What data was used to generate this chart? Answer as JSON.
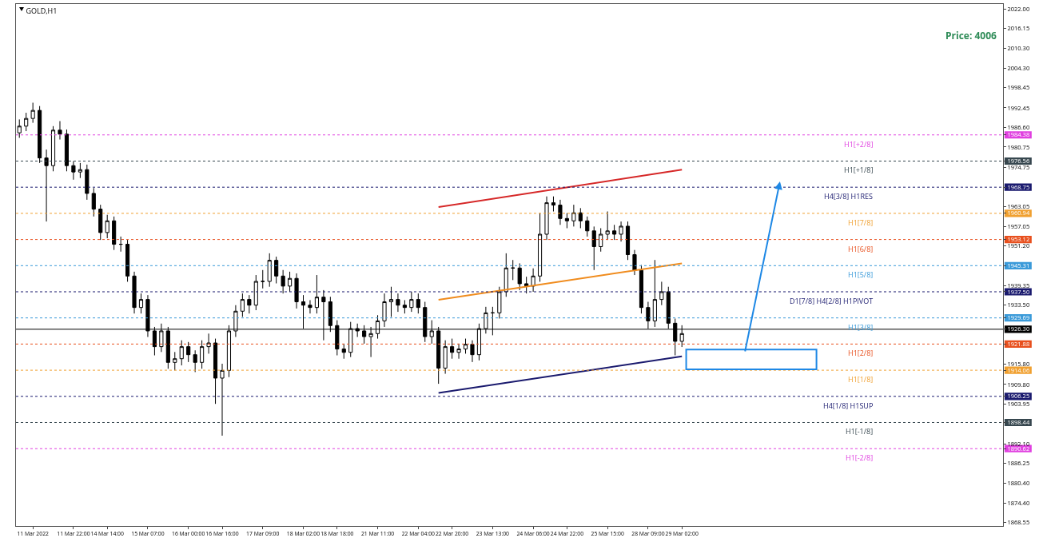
{
  "chart_data": {
    "type": "candlestick",
    "title": "GOLD,H1",
    "color": "#000000",
    "categories": [
      null,
      null,
      "11 Mar 2022",
      null,
      null,
      null,
      null,
      null,
      "11 Mar 22:00",
      null,
      null,
      null,
      null,
      "14 Mar 14:00",
      null,
      null,
      null,
      null,
      null,
      "15 Mar 07:00",
      null,
      null,
      null,
      null,
      null,
      "16 Mar 00:00",
      null,
      null,
      null,
      null,
      "16 Mar 16:00",
      null,
      null,
      null,
      null,
      null,
      "17 Mar 09:00",
      null,
      null,
      null,
      null,
      null,
      "18 Mar 02:00",
      null,
      null,
      null,
      null,
      "18 Mar 18:00",
      null,
      null,
      null,
      null,
      null,
      "21 Mar 11:00",
      null,
      null,
      null,
      null,
      null,
      "22 Mar 04:00",
      null,
      null,
      null,
      null,
      "22 Mar 20:00",
      null,
      null,
      null,
      null,
      null,
      "23 Mar 13:00",
      null,
      null,
      null,
      null,
      null,
      "24 Mar 06:00",
      null,
      null,
      null,
      null,
      "24 Mar 22:00",
      null,
      null,
      null,
      null,
      null,
      "25 Mar 15:00",
      null,
      null,
      null,
      null,
      null,
      "28 Mar 09:00",
      null,
      null,
      null,
      null,
      "29 Mar 02:00",
      null,
      null,
      null,
      null,
      null,
      null,
      null,
      null,
      null,
      null,
      null,
      null,
      null,
      null,
      null,
      null,
      null,
      null,
      null,
      null,
      null,
      null,
      null,
      null,
      null,
      null,
      null,
      null,
      null,
      null,
      null,
      null,
      null,
      null,
      null,
      null,
      null,
      null,
      null,
      null,
      null,
      null,
      null,
      null,
      null,
      null,
      null
    ],
    "ohlc": [
      [
        1985.0,
        1989.0,
        1983.5,
        1987.0
      ],
      [
        1987.0,
        1991.0,
        1985.5,
        1989.3
      ],
      [
        1989.3,
        1994.0,
        1988.0,
        1991.7
      ],
      [
        1991.7,
        1993.0,
        1976.0,
        1977.5
      ],
      [
        1977.5,
        1980.0,
        1958.5,
        1975.2
      ],
      [
        1975.2,
        1987.0,
        1973.5,
        1985.8
      ],
      [
        1985.8,
        1988.5,
        1983.0,
        1984.6
      ],
      [
        1984.6,
        1986.0,
        1973.5,
        1975.2
      ],
      [
        1975.2,
        1976.5,
        1971.0,
        1973.3
      ],
      [
        1973.3,
        1976.0,
        1971.5,
        1974.0
      ],
      [
        1974.0,
        1975.5,
        1965.0,
        1966.9
      ],
      [
        1966.9,
        1968.5,
        1960.0,
        1962.2
      ],
      [
        1962.2,
        1963.5,
        1953.0,
        1955.2
      ],
      [
        1955.2,
        1960.5,
        1953.5,
        1958.7
      ],
      [
        1958.7,
        1960.0,
        1950.0,
        1951.7
      ],
      [
        1951.7,
        1954.0,
        1949.5,
        1951.7
      ],
      [
        1951.7,
        1953.0,
        1940.5,
        1942.2
      ],
      [
        1942.2,
        1943.5,
        1931.0,
        1932.8
      ],
      [
        1932.8,
        1937.0,
        1931.0,
        1935.2
      ],
      [
        1935.2,
        1936.5,
        1924.0,
        1925.8
      ],
      [
        1925.8,
        1927.0,
        1918.5,
        1921.1
      ],
      [
        1921.1,
        1928.0,
        1919.5,
        1925.8
      ],
      [
        1925.8,
        1927.0,
        1914.5,
        1916.4
      ],
      [
        1916.4,
        1919.5,
        1914.0,
        1917.5
      ],
      [
        1917.5,
        1923.0,
        1915.5,
        1921.1
      ],
      [
        1921.1,
        1922.5,
        1916.5,
        1918.7
      ],
      [
        1918.7,
        1920.0,
        1913.5,
        1916.4
      ],
      [
        1916.4,
        1923.0,
        1914.5,
        1921.1
      ],
      [
        1921.1,
        1925.0,
        1919.0,
        1922.2
      ],
      [
        1922.2,
        1923.5,
        1904.0,
        1911.7
      ],
      [
        1911.7,
        1916.0,
        1894.5,
        1914.0
      ],
      [
        1914.0,
        1927.5,
        1912.0,
        1925.8
      ],
      [
        1925.8,
        1933.5,
        1924.0,
        1931.7
      ],
      [
        1931.7,
        1937.0,
        1930.0,
        1935.2
      ],
      [
        1935.2,
        1936.5,
        1931.0,
        1933.5
      ],
      [
        1933.5,
        1942.5,
        1932.0,
        1940.6
      ],
      [
        1940.6,
        1944.0,
        1938.5,
        1940.6
      ],
      [
        1940.6,
        1949.0,
        1939.0,
        1946.9
      ],
      [
        1946.9,
        1948.0,
        1940.0,
        1942.2
      ],
      [
        1942.2,
        1944.0,
        1937.0,
        1939.2
      ],
      [
        1939.2,
        1943.5,
        1937.5,
        1941.5
      ],
      [
        1941.5,
        1943.0,
        1932.5,
        1934.5
      ],
      [
        1934.5,
        1936.5,
        1926.5,
        1933.5
      ],
      [
        1933.5,
        1935.0,
        1931.0,
        1932.8
      ],
      [
        1932.8,
        1942.5,
        1931.0,
        1935.9
      ],
      [
        1935.9,
        1938.0,
        1923.0,
        1934.5
      ],
      [
        1934.5,
        1936.0,
        1925.5,
        1927.4
      ],
      [
        1927.4,
        1929.0,
        1918.5,
        1920.4
      ],
      [
        1920.4,
        1922.0,
        1917.5,
        1919.4
      ],
      [
        1919.4,
        1928.5,
        1918.0,
        1926.5
      ],
      [
        1926.5,
        1928.0,
        1924.0,
        1925.8
      ],
      [
        1925.8,
        1927.5,
        1922.0,
        1924.1
      ],
      [
        1924.1,
        1927.0,
        1918.0,
        1925.0
      ],
      [
        1925.0,
        1930.5,
        1923.5,
        1928.8
      ],
      [
        1928.8,
        1937.0,
        1927.0,
        1934.5
      ],
      [
        1934.5,
        1939.0,
        1930.0,
        1935.2
      ],
      [
        1935.2,
        1937.0,
        1931.5,
        1933.5
      ],
      [
        1933.5,
        1935.0,
        1931.0,
        1932.8
      ],
      [
        1932.8,
        1937.5,
        1931.5,
        1935.2
      ],
      [
        1935.2,
        1937.0,
        1931.0,
        1932.8
      ],
      [
        1932.8,
        1934.5,
        1922.5,
        1924.1
      ],
      [
        1924.1,
        1929.0,
        1922.0,
        1925.8
      ],
      [
        1925.8,
        1927.0,
        1910.0,
        1914.7
      ],
      [
        1914.7,
        1923.0,
        1913.0,
        1921.1
      ],
      [
        1921.1,
        1923.5,
        1917.5,
        1919.4
      ],
      [
        1919.4,
        1922.0,
        1917.5,
        1920.4
      ],
      [
        1920.4,
        1923.5,
        1919.0,
        1921.8
      ],
      [
        1921.8,
        1923.0,
        1916.5,
        1918.7
      ],
      [
        1918.7,
        1928.0,
        1917.0,
        1926.5
      ],
      [
        1926.5,
        1933.0,
        1925.0,
        1931.2
      ],
      [
        1931.2,
        1933.0,
        1924.5,
        1931.2
      ],
      [
        1931.2,
        1939.0,
        1929.5,
        1937.5
      ],
      [
        1937.5,
        1949.0,
        1936.0,
        1944.6
      ],
      [
        1944.6,
        1947.0,
        1941.0,
        1944.6
      ],
      [
        1944.6,
        1946.0,
        1938.0,
        1939.9
      ],
      [
        1939.9,
        1942.0,
        1937.0,
        1939.2
      ],
      [
        1939.2,
        1944.5,
        1937.5,
        1942.2
      ],
      [
        1942.2,
        1961.0,
        1940.5,
        1954.7
      ],
      [
        1954.7,
        1966.0,
        1953.0,
        1964.1
      ],
      [
        1964.1,
        1966.0,
        1961.5,
        1963.4
      ],
      [
        1963.4,
        1965.0,
        1957.5,
        1959.4
      ],
      [
        1959.4,
        1961.0,
        1956.5,
        1958.7
      ],
      [
        1958.7,
        1963.5,
        1957.0,
        1961.1
      ],
      [
        1961.1,
        1962.5,
        1956.5,
        1958.7
      ],
      [
        1958.7,
        1960.0,
        1954.0,
        1955.7
      ],
      [
        1955.7,
        1957.0,
        1944.0,
        1951.0
      ],
      [
        1951.0,
        1956.5,
        1949.5,
        1954.7
      ],
      [
        1954.7,
        1961.5,
        1953.0,
        1955.7
      ],
      [
        1955.7,
        1957.5,
        1953.0,
        1954.7
      ],
      [
        1954.7,
        1958.5,
        1952.5,
        1957.1
      ],
      [
        1957.1,
        1958.5,
        1947.0,
        1948.6
      ],
      [
        1948.6,
        1950.0,
        1942.5,
        1943.9
      ],
      [
        1943.9,
        1945.5,
        1931.0,
        1932.8
      ],
      [
        1932.8,
        1934.5,
        1926.5,
        1928.8
      ],
      [
        1928.8,
        1947.0,
        1927.0,
        1935.2
      ],
      [
        1935.2,
        1940.5,
        1933.5,
        1937.5
      ],
      [
        1937.5,
        1939.0,
        1926.5,
        1928.1
      ],
      [
        1928.1,
        1929.5,
        1918.5,
        1922.7
      ],
      [
        1922.7,
        1927.5,
        1921.0,
        1925.0
      ],
      null,
      null,
      null,
      null,
      null,
      null,
      null,
      null,
      null,
      null,
      null,
      null,
      null,
      null,
      null,
      null,
      null,
      null,
      null,
      null,
      null,
      null,
      null,
      null,
      null,
      null,
      null,
      null,
      null,
      null,
      null,
      null,
      null,
      null,
      null,
      null,
      null,
      null,
      null,
      null,
      null,
      null,
      null,
      null,
      null,
      null,
      null
    ],
    "series": [
      {
        "type": "line",
        "color": "#d62828",
        "values": [
          null,
          null,
          null,
          null,
          null,
          null,
          null,
          null,
          null,
          null,
          null,
          null,
          null,
          null,
          null,
          null,
          null,
          null,
          null,
          null,
          null,
          null,
          null,
          null,
          null,
          null,
          null,
          null,
          null,
          null,
          null,
          null,
          null,
          null,
          null,
          null,
          null,
          null,
          null,
          null,
          null,
          null,
          null,
          null,
          null,
          null,
          null,
          null,
          null,
          null,
          null,
          null,
          null,
          null,
          null,
          null,
          null,
          null,
          null,
          null,
          null,
          null,
          1962.8,
          null,
          null,
          null,
          null,
          null,
          null,
          null,
          null,
          null,
          null,
          null,
          null,
          null,
          null,
          null,
          null,
          null,
          null,
          null,
          null,
          null,
          null,
          null,
          null,
          null,
          null,
          null,
          null,
          null,
          null,
          null,
          null,
          null,
          null,
          null,
          1974.0,
          null,
          null,
          null,
          null,
          null,
          null,
          null,
          null,
          null,
          null,
          null,
          null,
          null,
          null,
          null,
          null,
          null,
          null,
          null,
          null,
          null,
          null,
          null,
          null,
          null,
          null,
          null,
          null,
          null,
          null,
          null,
          null,
          null,
          null,
          null,
          null,
          null,
          null,
          null,
          null,
          null,
          null,
          null,
          null,
          null,
          null,
          null
        ]
      },
      {
        "type": "line",
        "color": "#f08c1e",
        "values": [
          null,
          null,
          null,
          null,
          null,
          null,
          null,
          null,
          null,
          null,
          null,
          null,
          null,
          null,
          null,
          null,
          null,
          null,
          null,
          null,
          null,
          null,
          null,
          null,
          null,
          null,
          null,
          null,
          null,
          null,
          null,
          null,
          null,
          null,
          null,
          null,
          null,
          null,
          null,
          null,
          null,
          null,
          null,
          null,
          null,
          null,
          null,
          null,
          null,
          null,
          null,
          null,
          null,
          null,
          null,
          null,
          null,
          null,
          null,
          null,
          null,
          null,
          1935.1,
          null,
          null,
          null,
          null,
          null,
          null,
          null,
          null,
          null,
          null,
          null,
          null,
          null,
          null,
          null,
          null,
          null,
          null,
          null,
          null,
          null,
          null,
          null,
          null,
          null,
          null,
          null,
          null,
          null,
          null,
          null,
          null,
          null,
          null,
          null,
          1946.0,
          null,
          null,
          null,
          null,
          null,
          null,
          null,
          null,
          null,
          null,
          null,
          null,
          null,
          null,
          null,
          null,
          null,
          null,
          null,
          null,
          null,
          null,
          null,
          null,
          null,
          null,
          null,
          null,
          null,
          null,
          null,
          null,
          null,
          null,
          null,
          null,
          null,
          null,
          null,
          null,
          null,
          null,
          null,
          null,
          null,
          null,
          null
        ]
      },
      {
        "type": "line",
        "color": "#1a1a6e",
        "values": [
          null,
          null,
          null,
          null,
          null,
          null,
          null,
          null,
          null,
          null,
          null,
          null,
          null,
          null,
          null,
          null,
          null,
          null,
          null,
          null,
          null,
          null,
          null,
          null,
          null,
          null,
          null,
          null,
          null,
          null,
          null,
          null,
          null,
          null,
          null,
          null,
          null,
          null,
          null,
          null,
          null,
          null,
          null,
          null,
          null,
          null,
          null,
          null,
          null,
          null,
          null,
          null,
          null,
          null,
          null,
          null,
          null,
          null,
          null,
          null,
          null,
          null,
          1907.3,
          null,
          null,
          null,
          null,
          null,
          null,
          null,
          null,
          null,
          null,
          null,
          null,
          null,
          null,
          null,
          null,
          null,
          null,
          null,
          null,
          null,
          null,
          null,
          null,
          null,
          null,
          null,
          null,
          null,
          null,
          null,
          null,
          null,
          null,
          null,
          1918.2,
          null,
          null,
          null,
          null,
          null,
          null,
          null,
          null,
          null,
          null,
          null,
          null,
          null,
          null,
          null,
          null,
          null,
          null,
          null,
          null,
          null,
          null,
          null,
          null,
          null,
          null,
          null,
          null,
          null,
          null,
          null,
          null,
          null,
          null,
          null,
          null,
          null,
          null,
          null,
          null,
          null,
          null,
          null,
          null,
          null,
          null,
          null
        ]
      }
    ],
    "ylim": [
      1867.5,
      2023.5
    ],
    "yticks": [
      {
        "value": 2022,
        "label": "2022.00"
      },
      {
        "value": 2016.15,
        "label": "2016.15"
      },
      {
        "value": 2010.3,
        "label": "2010.30"
      },
      {
        "value": 2004.3,
        "label": "2004.30"
      },
      {
        "value": 1998.45,
        "label": "1998.45"
      },
      {
        "value": 1992.45,
        "label": "1992.45"
      },
      {
        "value": 1986.6,
        "label": "1986.60"
      },
      {
        "value": 1984.38,
        "label": "1984.38"
      },
      {
        "value": 1980.75,
        "label": "1980.75"
      },
      {
        "value": 1976.56,
        "label": "1976.56"
      },
      {
        "value": 1974.75,
        "label": "1974.75"
      },
      {
        "value": 1968.75,
        "label": "1968.75"
      },
      {
        "value": 1963.05,
        "label": "1963.05"
      },
      {
        "value": 1960.94,
        "label": "1960.94"
      },
      {
        "value": 1957.05,
        "label": "1957.05"
      },
      {
        "value": 1953.12,
        "label": "1953.12"
      },
      {
        "value": 1951.2,
        "label": "1951.20"
      },
      {
        "value": 1945.31,
        "label": "1945.31"
      },
      {
        "value": 1939.35,
        "label": "1939.35"
      },
      {
        "value": 1937.5,
        "label": "1937.50"
      },
      {
        "value": 1933.5,
        "label": "1933.50"
      },
      {
        "value": 1929.69,
        "label": "1929.69"
      },
      {
        "value": 1926.3,
        "label": "1926.30"
      },
      {
        "value": 1921.88,
        "label": "1921.88"
      },
      {
        "value": 1915.8,
        "label": "1915.80"
      },
      {
        "value": 1914.06,
        "label": "1914.06"
      },
      {
        "value": 1909.8,
        "label": "1909.80"
      },
      {
        "value": 1906.25,
        "label": "1906.25"
      },
      {
        "value": 1903.95,
        "label": "1903.95"
      },
      {
        "value": 1898.44,
        "label": "1898.44"
      },
      {
        "value": 1892.1,
        "label": "1892.10"
      },
      {
        "value": 1890.62,
        "label": "1890.62"
      },
      {
        "value": 1886.25,
        "label": "1886.25"
      },
      {
        "value": 1880.4,
        "label": "1880.40"
      },
      {
        "value": 1874.4,
        "label": "1874.40"
      },
      {
        "value": 1868.55,
        "label": "1868.55"
      }
    ],
    "ref_lines": [
      {
        "axis": "y",
        "value": 1984.38,
        "label": "H1[+2/8]",
        "color": "#e040e0",
        "line_style": "dotted"
      },
      {
        "axis": "y",
        "value": 1976.56,
        "label": "H1[+1/8]",
        "color": "#37474f",
        "line_style": "dotted"
      },
      {
        "axis": "y",
        "value": 1968.75,
        "label": "H4[3/8] H1RES",
        "color": "#1a1a6e",
        "line_style": "dotted"
      },
      {
        "axis": "y",
        "value": 1960.94,
        "label": "H1[7/8]",
        "color": "#f0a030",
        "line_style": "dotted"
      },
      {
        "axis": "y",
        "value": 1953.12,
        "label": "H1[6/8]",
        "color": "#e8501e",
        "line_style": "dotted"
      },
      {
        "axis": "y",
        "value": 1945.31,
        "label": "H1[5/8]",
        "color": "#3a9ad9",
        "line_style": "dotted"
      },
      {
        "axis": "y",
        "value": 1937.5,
        "label": "D1[7/8] H4[2/8] H1PIVOT",
        "color": "#1a1a6e",
        "line_style": "dotted"
      },
      {
        "axis": "y",
        "value": 1929.69,
        "label": "H1[3/8]",
        "color": "#3a9ad9",
        "line_style": "dotted"
      },
      {
        "axis": "y",
        "value": 1926.3,
        "label": null,
        "color": "#000000",
        "line_style": "solid"
      },
      {
        "axis": "y",
        "value": 1921.88,
        "label": "H1[2/8]",
        "color": "#e8501e",
        "line_style": "dotted"
      },
      {
        "axis": "y",
        "value": 1914.06,
        "label": "H1[1/8]",
        "color": "#f0a030",
        "line_style": "dotted"
      },
      {
        "axis": "y",
        "value": 1906.25,
        "label": "H4[1/8] H1SUP",
        "color": "#1a1a6e",
        "line_style": "dotted"
      },
      {
        "axis": "y",
        "value": 1898.44,
        "label": "H1[-1/8]",
        "color": "#37474f",
        "line_style": "dotted"
      },
      {
        "axis": "y",
        "value": 1890.62,
        "label": "H1[-2/8]",
        "color": "#e040e0",
        "line_style": "dotted"
      }
    ],
    "annotations": [
      "Price: 4006"
    ],
    "grid": false,
    "legend": false
  }
}
